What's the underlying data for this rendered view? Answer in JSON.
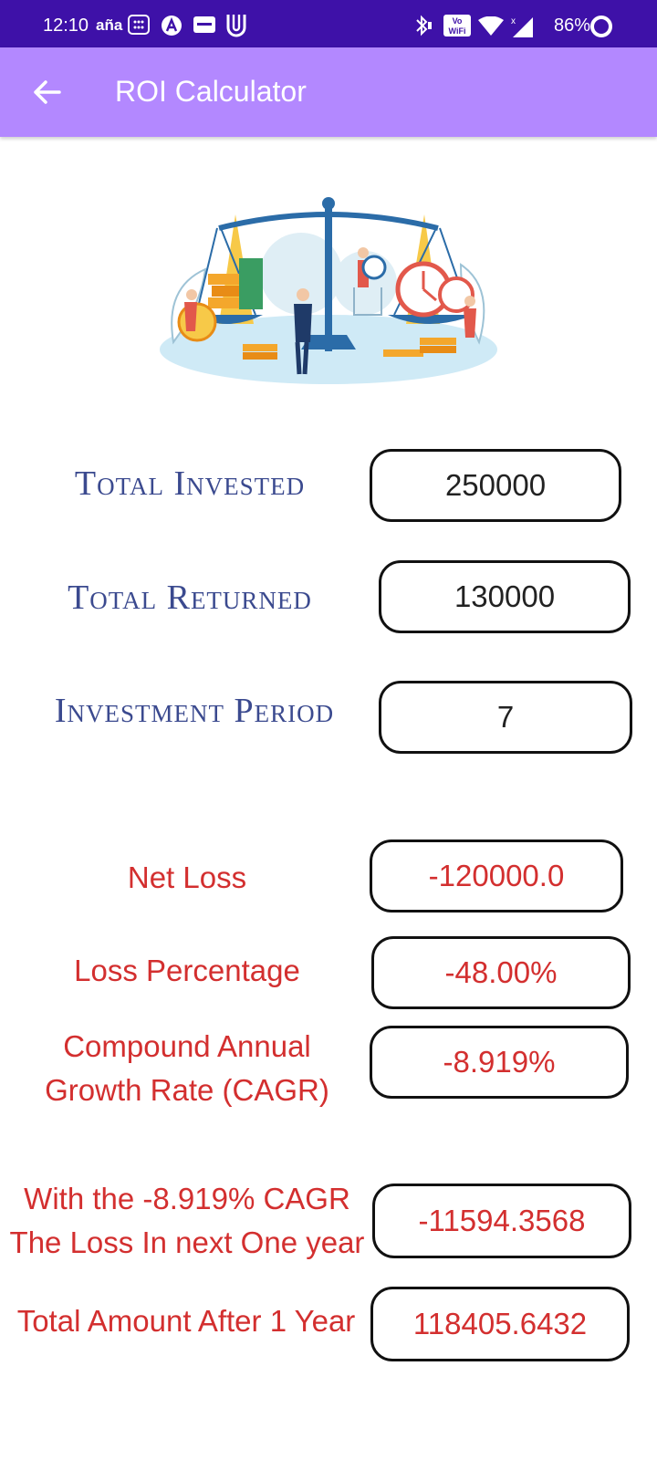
{
  "status_bar": {
    "time": "12:10",
    "carrier": "aña",
    "vowifi": "Vo WiFi",
    "battery": "86%"
  },
  "app_bar": {
    "title": "ROI Calculator"
  },
  "inputs": {
    "total_invested": {
      "label": "Total Invested",
      "value": "250000"
    },
    "total_returned": {
      "label": "Total Returned",
      "value": "130000"
    },
    "investment_period": {
      "label": "Investment Period",
      "value": "7"
    }
  },
  "results": {
    "net_loss": {
      "label": "Net Loss",
      "value": "-120000.0"
    },
    "loss_percentage": {
      "label": "Loss Percentage",
      "value": "-48.00%"
    },
    "cagr": {
      "label_line1": "Compound Annual",
      "label_line2": "Growth Rate (CAGR)",
      "value": "-8.919%"
    },
    "next_year_loss": {
      "label_line1": "With the -8.919% CAGR",
      "label_line2": "The Loss In next One year",
      "value": "-11594.3568"
    },
    "total_after_year": {
      "label": "Total Amount After 1 Year",
      "value": "118405.6432"
    }
  },
  "colors": {
    "status_bar": "#3e11a8",
    "app_bar": "#b388ff",
    "label_blue": "#3b4a8f",
    "result_red": "#d32f2f"
  }
}
